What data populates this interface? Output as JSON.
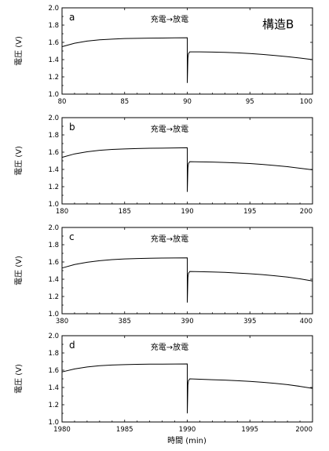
{
  "figure": {
    "structure_label": "構造B",
    "xlabel": "時間 (min)"
  },
  "chart_data": [
    {
      "type": "line",
      "panel_label": "a",
      "annotation": "充電→放電",
      "ylabel": "電圧 (V)",
      "xlim": [
        80,
        100
      ],
      "ylim": [
        1.0,
        2.0
      ],
      "xticks": [
        "80",
        "85",
        "90",
        "95",
        "100"
      ],
      "yticks": [
        "1.0",
        "1.2",
        "1.4",
        "1.6",
        "1.8",
        "2.0"
      ],
      "series": [
        {
          "x": [
            80,
            81,
            82,
            83,
            84,
            85,
            86,
            87,
            88,
            89,
            90,
            90,
            90.05,
            90.1,
            90.2,
            91,
            92,
            93,
            94,
            95,
            96,
            97,
            98,
            99,
            100
          ],
          "y": [
            1.55,
            1.59,
            1.615,
            1.63,
            1.638,
            1.644,
            1.647,
            1.649,
            1.65,
            1.652,
            1.653,
            1.13,
            1.42,
            1.47,
            1.49,
            1.49,
            1.488,
            1.484,
            1.478,
            1.47,
            1.46,
            1.448,
            1.434,
            1.418,
            1.4
          ]
        }
      ]
    },
    {
      "type": "line",
      "panel_label": "b",
      "annotation": "充電→放電",
      "ylabel": "電圧 (V)",
      "xlim": [
        180,
        200
      ],
      "ylim": [
        1.0,
        2.0
      ],
      "xticks": [
        "180",
        "185",
        "190",
        "195",
        "200"
      ],
      "yticks": [
        "1.0",
        "1.2",
        "1.4",
        "1.6",
        "1.8",
        "2.0"
      ],
      "series": [
        {
          "x": [
            180,
            181,
            182,
            183,
            184,
            185,
            186,
            187,
            188,
            189,
            190,
            190,
            190.05,
            190.1,
            190.2,
            191,
            192,
            193,
            194,
            195,
            196,
            197,
            198,
            199,
            200
          ],
          "y": [
            1.54,
            1.58,
            1.605,
            1.622,
            1.632,
            1.638,
            1.642,
            1.645,
            1.647,
            1.649,
            1.651,
            1.14,
            1.42,
            1.47,
            1.49,
            1.488,
            1.485,
            1.481,
            1.475,
            1.468,
            1.458,
            1.446,
            1.432,
            1.414,
            1.395
          ]
        }
      ]
    },
    {
      "type": "line",
      "panel_label": "c",
      "annotation": "充電→放電",
      "ylabel": "電圧 (V)",
      "xlim": [
        380,
        400
      ],
      "ylim": [
        1.0,
        2.0
      ],
      "xticks": [
        "380",
        "385",
        "390",
        "395",
        "400"
      ],
      "yticks": [
        "1.0",
        "1.2",
        "1.4",
        "1.6",
        "1.8",
        "2.0"
      ],
      "series": [
        {
          "x": [
            380,
            381,
            382,
            383,
            384,
            385,
            386,
            387,
            388,
            389,
            390,
            390,
            390.05,
            390.1,
            390.2,
            391,
            392,
            393,
            394,
            395,
            396,
            397,
            398,
            399,
            400
          ],
          "y": [
            1.53,
            1.57,
            1.597,
            1.615,
            1.627,
            1.635,
            1.64,
            1.643,
            1.645,
            1.647,
            1.648,
            1.13,
            1.42,
            1.47,
            1.49,
            1.487,
            1.484,
            1.479,
            1.472,
            1.464,
            1.453,
            1.44,
            1.425,
            1.405,
            1.38
          ]
        }
      ]
    },
    {
      "type": "line",
      "panel_label": "d",
      "annotation": "充電→放電",
      "ylabel": "電圧 (V)",
      "xlim": [
        1980,
        2000
      ],
      "ylim": [
        1.0,
        2.0
      ],
      "xticks": [
        "1980",
        "1985",
        "1990",
        "1995",
        "2000"
      ],
      "yticks": [
        "1.0",
        "1.2",
        "1.4",
        "1.6",
        "1.8",
        "2.0"
      ],
      "series": [
        {
          "x": [
            1980,
            1981,
            1982,
            1983,
            1984,
            1985,
            1986,
            1987,
            1988,
            1989,
            1990,
            1990,
            1990.05,
            1990.1,
            1990.2,
            1991,
            1992,
            1993,
            1994,
            1995,
            1996,
            1997,
            1998,
            1999,
            2000
          ],
          "y": [
            1.58,
            1.615,
            1.638,
            1.652,
            1.66,
            1.665,
            1.668,
            1.67,
            1.671,
            1.672,
            1.673,
            1.1,
            1.43,
            1.48,
            1.5,
            1.495,
            1.49,
            1.485,
            1.478,
            1.47,
            1.46,
            1.448,
            1.433,
            1.413,
            1.39
          ]
        }
      ]
    }
  ]
}
